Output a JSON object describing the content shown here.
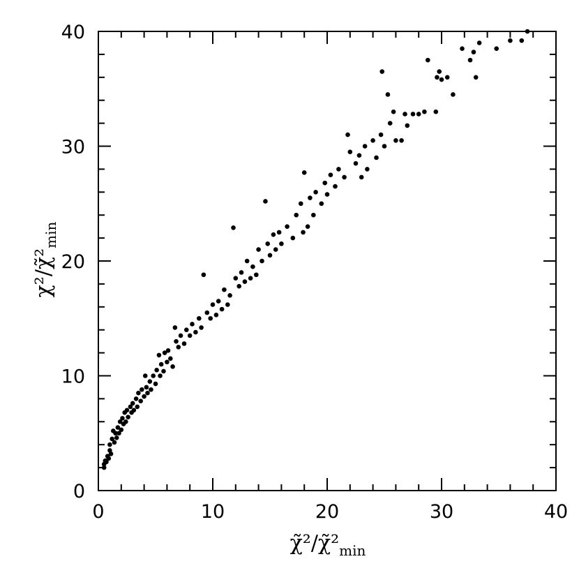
{
  "chart_data": {
    "type": "scatter",
    "xlabel": [
      "χ̃²/χ̃²",
      "min"
    ],
    "ylabel": [
      "χ²/χ̃²",
      "min"
    ],
    "xlim": [
      0,
      40
    ],
    "ylim": [
      0,
      40
    ],
    "xticks": [
      0,
      10,
      20,
      30,
      40
    ],
    "yticks": [
      0,
      10,
      20,
      30,
      40
    ],
    "xminorticks": [
      2,
      4,
      6,
      8,
      12,
      14,
      16,
      18,
      22,
      24,
      26,
      28,
      32,
      34,
      36,
      38
    ],
    "yminorticks": [
      2,
      4,
      6,
      8,
      12,
      14,
      16,
      18,
      22,
      24,
      26,
      28,
      32,
      34,
      36,
      38
    ],
    "x": [
      0.5,
      0.5,
      0.6,
      0.7,
      0.8,
      0.9,
      1.0,
      1.0,
      1.1,
      1.2,
      1.3,
      1.4,
      1.5,
      1.6,
      1.7,
      1.8,
      1.9,
      2.0,
      2.1,
      2.2,
      2.3,
      2.4,
      2.5,
      2.6,
      2.8,
      2.9,
      3.0,
      3.1,
      3.3,
      3.4,
      3.5,
      3.7,
      3.8,
      4.0,
      4.1,
      4.2,
      4.3,
      4.5,
      4.6,
      4.8,
      5.0,
      5.1,
      5.3,
      5.4,
      5.5,
      5.7,
      5.8,
      6.0,
      6.1,
      6.3,
      6.5,
      6.7,
      6.8,
      7.0,
      7.2,
      7.5,
      7.7,
      8.0,
      8.2,
      8.5,
      8.8,
      9.0,
      9.2,
      9.5,
      9.8,
      10.0,
      10.3,
      10.5,
      10.8,
      11.0,
      11.3,
      11.5,
      11.8,
      12.0,
      12.3,
      12.5,
      12.8,
      13.0,
      13.3,
      13.5,
      13.8,
      14.0,
      14.3,
      14.6,
      14.8,
      15.0,
      15.3,
      15.5,
      15.8,
      16.0,
      16.5,
      17.0,
      17.3,
      17.7,
      17.9,
      18.0,
      18.3,
      18.5,
      18.8,
      19.0,
      19.5,
      19.8,
      20.0,
      20.3,
      20.7,
      21.0,
      21.5,
      21.8,
      22.0,
      22.5,
      22.8,
      23.0,
      23.3,
      23.5,
      24.0,
      24.3,
      24.7,
      24.8,
      25.0,
      25.3,
      25.5,
      25.8,
      26.0,
      26.5,
      26.8,
      27.0,
      27.5,
      28.0,
      28.5,
      28.8,
      29.5,
      29.6,
      29.8,
      30.0,
      30.5,
      31.0,
      31.8,
      32.5,
      32.8,
      33.0,
      33.3,
      34.8,
      36.0,
      37.0,
      37.5
    ],
    "series": [
      {
        "color": "#000000",
        "values": [
          2,
          2.3,
          2.6,
          2.5,
          3.0,
          2.8,
          3.5,
          4.0,
          3.2,
          4.5,
          5.2,
          4.2,
          5.0,
          4.6,
          5.5,
          5.0,
          6.0,
          5.3,
          6.3,
          5.8,
          6.8,
          6.0,
          7.0,
          6.4,
          7.3,
          6.8,
          7.6,
          7.0,
          8.0,
          7.3,
          8.5,
          7.8,
          8.8,
          8.2,
          10.0,
          9.0,
          8.5,
          9.5,
          8.8,
          10.0,
          9.3,
          10.5,
          11.8,
          10.0,
          11.0,
          10.4,
          12.0,
          11.2,
          12.2,
          11.5,
          10.8,
          14.2,
          13.0,
          12.5,
          13.5,
          12.8,
          14.0,
          13.5,
          14.5,
          13.8,
          15.0,
          14.2,
          18.8,
          15.5,
          15.0,
          16.2,
          15.3,
          16.5,
          15.8,
          17.5,
          16.2,
          17.0,
          22.9,
          18.5,
          17.8,
          19.0,
          18.2,
          20.0,
          18.5,
          19.5,
          18.8,
          21.0,
          20.0,
          25.2,
          21.5,
          20.5,
          22.3,
          21.0,
          22.5,
          21.5,
          23.0,
          22.0,
          24.0,
          25.0,
          22.5,
          27.7,
          23.0,
          25.5,
          24.0,
          26.0,
          25.0,
          26.8,
          25.8,
          27.5,
          26.5,
          28.0,
          27.3,
          31.0,
          29.5,
          28.5,
          29.2,
          27.3,
          30.0,
          28.0,
          30.5,
          29.0,
          31.0,
          36.5,
          30.0,
          34.5,
          32.0,
          33.0,
          30.5,
          30.5,
          32.8,
          31.8,
          32.8,
          32.8,
          33.0,
          37.5,
          33.0,
          36.0,
          36.5,
          35.8,
          36.0,
          34.5,
          38.5,
          37.5,
          38.2,
          36.0,
          39.0,
          38.5,
          39.2,
          39.2,
          40
        ]
      }
    ]
  }
}
